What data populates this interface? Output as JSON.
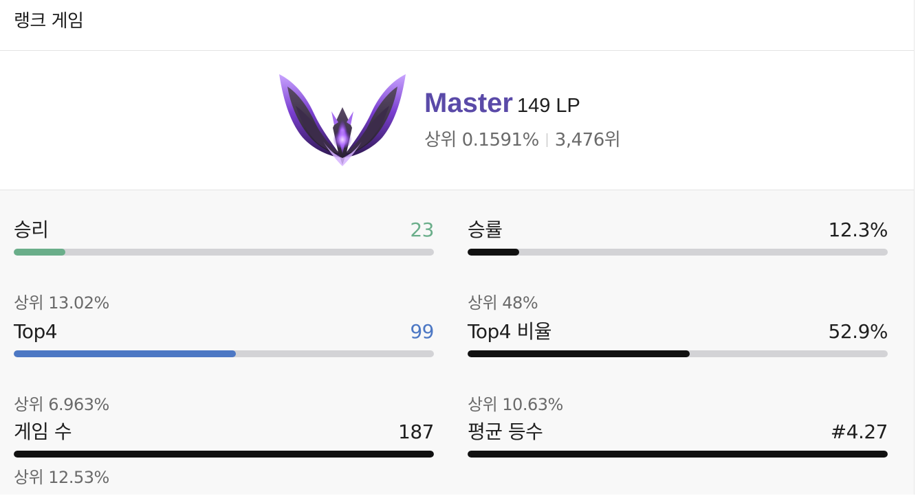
{
  "header": {
    "title": "랭크 게임"
  },
  "tier": {
    "name": "Master",
    "lp": "149 LP",
    "top_percent": "상위 0.1591%",
    "rank": "3,476위",
    "name_color": "#5a4aa8",
    "emblem_icon": "master-emblem-icon"
  },
  "stats": [
    {
      "label": "승리",
      "value": "23",
      "sub": "상위 13.02%",
      "bar_fraction": 0.123,
      "color": "#6aae8a"
    },
    {
      "label": "승률",
      "value": "12.3%",
      "sub": "상위 48%",
      "bar_fraction": 0.123,
      "color": "#111111"
    },
    {
      "label": "Top4",
      "value": "99",
      "sub": "상위 6.963%",
      "bar_fraction": 0.529,
      "color": "#4d78c4"
    },
    {
      "label": "Top4 비율",
      "value": "52.9%",
      "sub": "상위 10.63%",
      "bar_fraction": 0.529,
      "color": "#111111"
    },
    {
      "label": "게임 수",
      "value": "187",
      "sub": "상위 12.53%",
      "bar_fraction": 1.0,
      "color": "#111111"
    },
    {
      "label": "평균 등수",
      "value": "#4.27",
      "sub": "",
      "bar_fraction": 1.0,
      "color": "#111111"
    }
  ]
}
